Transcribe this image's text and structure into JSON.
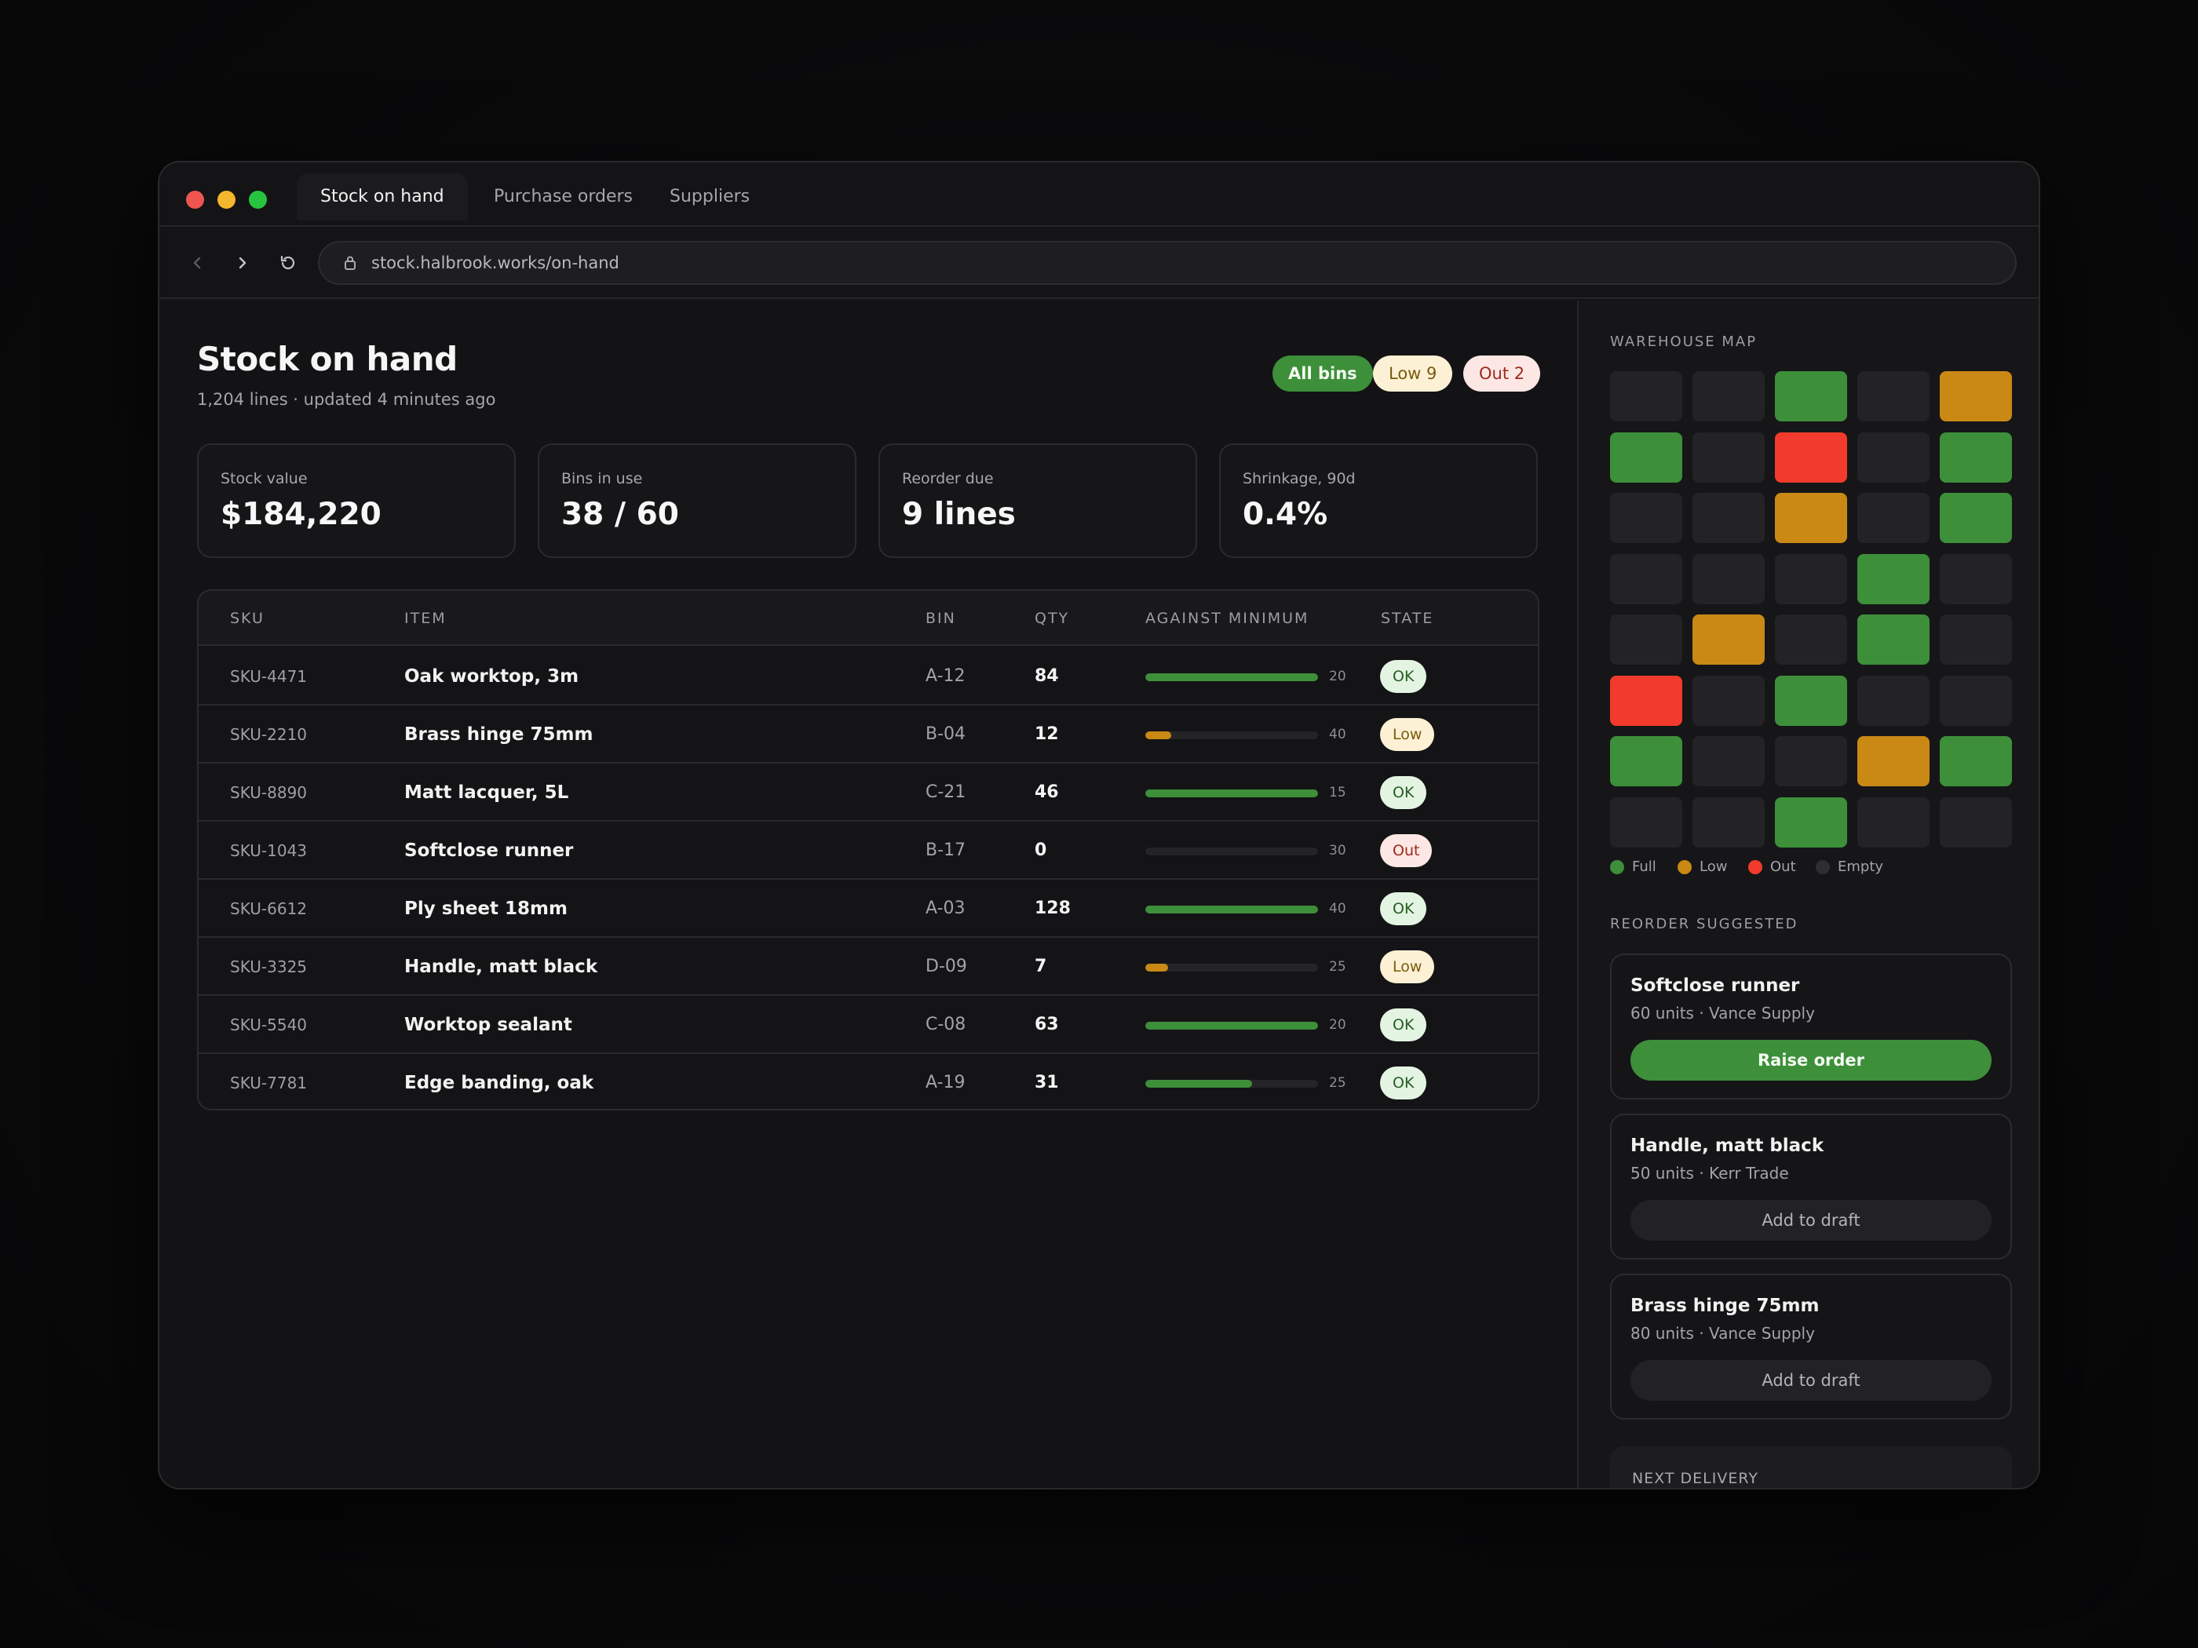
{
  "tabs": [
    {
      "label": "Stock on hand",
      "active": true
    },
    {
      "label": "Purchase orders",
      "active": false
    },
    {
      "label": "Suppliers",
      "active": false
    }
  ],
  "address": {
    "url": "stock.halbrook.works/on-hand"
  },
  "icons": {
    "back": "chevron-left-icon",
    "forward": "chevron-right-icon",
    "reload": "reload-icon",
    "lock": "lock-icon"
  },
  "header": {
    "title": "Stock on hand",
    "subtitle": "1,204 lines · updated 4 minutes ago",
    "filters": {
      "all": "All bins",
      "low": "Low 9",
      "out": "Out 2"
    }
  },
  "stats": [
    {
      "label": "Stock value",
      "value": "$184,220"
    },
    {
      "label": "Bins in use",
      "value": "38 / 60"
    },
    {
      "label": "Reorder due",
      "value": "9 lines"
    },
    {
      "label": "Shrinkage, 90d",
      "value": "0.4%"
    }
  ],
  "table": {
    "headers": {
      "sku": "SKU",
      "item": "ITEM",
      "bin": "BIN",
      "qty": "QTY",
      "against": "AGAINST MINIMUM",
      "state": "STATE"
    },
    "rows": [
      {
        "sku": "SKU-4471",
        "item": "Oak worktop, 3m",
        "bin": "A-12",
        "qty": "84",
        "min": "20",
        "fill": 1.0,
        "state": "OK",
        "kind": "ok"
      },
      {
        "sku": "SKU-2210",
        "item": "Brass hinge 75mm",
        "bin": "B-04",
        "qty": "12",
        "min": "40",
        "fill": 0.15,
        "state": "Low",
        "kind": "low"
      },
      {
        "sku": "SKU-8890",
        "item": "Matt lacquer, 5L",
        "bin": "C-21",
        "qty": "46",
        "min": "15",
        "fill": 1.0,
        "state": "OK",
        "kind": "ok"
      },
      {
        "sku": "SKU-1043",
        "item": "Softclose runner",
        "bin": "B-17",
        "qty": "0",
        "min": "30",
        "fill": 0.0,
        "state": "Out",
        "kind": "out"
      },
      {
        "sku": "SKU-6612",
        "item": "Ply sheet 18mm",
        "bin": "A-03",
        "qty": "128",
        "min": "40",
        "fill": 1.0,
        "state": "OK",
        "kind": "ok"
      },
      {
        "sku": "SKU-3325",
        "item": "Handle, matt black",
        "bin": "D-09",
        "qty": "7",
        "min": "25",
        "fill": 0.13,
        "state": "Low",
        "kind": "low"
      },
      {
        "sku": "SKU-5540",
        "item": "Worktop sealant",
        "bin": "C-08",
        "qty": "63",
        "min": "20",
        "fill": 1.0,
        "state": "OK",
        "kind": "ok"
      },
      {
        "sku": "SKU-7781",
        "item": "Edge banding, oak",
        "bin": "A-19",
        "qty": "31",
        "min": "25",
        "fill": 0.62,
        "state": "OK",
        "kind": "ok"
      }
    ]
  },
  "colors": {
    "full": "#3d8f3a",
    "low": "#c98914",
    "out": "#f23b2c",
    "empty": "#232325",
    "bar_ok": "#3d8f3a",
    "bar_low": "#c98914"
  },
  "sidebar": {
    "map_title": "WAREHOUSE MAP",
    "map": [
      [
        "empty",
        "empty",
        "full",
        "empty",
        "low"
      ],
      [
        "full",
        "empty",
        "out",
        "empty",
        "full"
      ],
      [
        "empty",
        "empty",
        "low",
        "empty",
        "full"
      ],
      [
        "empty",
        "empty",
        "empty",
        "full",
        "empty"
      ],
      [
        "empty",
        "low",
        "empty",
        "full",
        "empty"
      ],
      [
        "out",
        "empty",
        "full",
        "empty",
        "empty"
      ],
      [
        "full",
        "empty",
        "empty",
        "low",
        "full"
      ],
      [
        "empty",
        "empty",
        "full",
        "empty",
        "empty"
      ]
    ],
    "legend": {
      "full": "Full",
      "low": "Low",
      "out": "Out",
      "empty": "Empty"
    },
    "reorder_title": "REORDER SUGGESTED",
    "reorder": [
      {
        "name": "Softclose runner",
        "detail": "60 units · Vance Supply",
        "action": "Raise order",
        "primary": true
      },
      {
        "name": "Handle, matt black",
        "detail": "50 units · Kerr Trade",
        "action": "Add to draft",
        "primary": false
      },
      {
        "name": "Brass hinge 75mm",
        "detail": "80 units · Vance Supply",
        "action": "Add to draft",
        "primary": false
      }
    ],
    "next_delivery": "NEXT DELIVERY"
  }
}
